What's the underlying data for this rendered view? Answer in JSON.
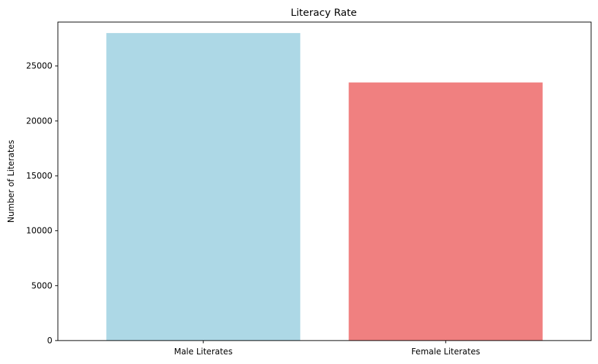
{
  "chart_data": {
    "type": "bar",
    "title": "Literacy Rate",
    "xlabel": "",
    "ylabel": "Number of Literates",
    "categories": [
      "Male Literates",
      "Female Literates"
    ],
    "values": [
      28000,
      23500
    ],
    "colors": [
      "#add8e6",
      "#f08080"
    ],
    "ylim": [
      0,
      29000
    ],
    "yticks": [
      0,
      5000,
      10000,
      15000,
      20000,
      25000
    ],
    "grid": false,
    "legend": "none"
  }
}
